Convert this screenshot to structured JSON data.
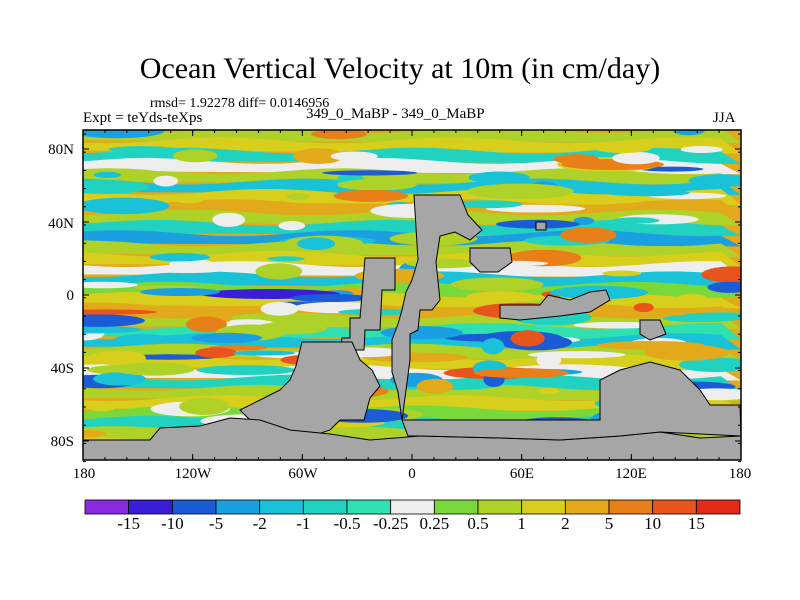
{
  "header": {
    "title": "Ocean Vertical Velocity at 10m (in cm/day)",
    "stats": "rmsd= 1.92278 diff= 0.0146956",
    "expt": "Expt = teYds-teXps",
    "cases": "349_0_MaBP - 349_0_MaBP",
    "season": "JJA"
  },
  "axes": {
    "lat_labels": [
      "80N",
      "40N",
      "0",
      "40S",
      "80S"
    ],
    "lon_labels": [
      "180",
      "120W",
      "60W",
      "0",
      "60E",
      "120E",
      "180"
    ]
  },
  "colorbar": {
    "labels": [
      "-15",
      "-10",
      "-5",
      "-2",
      "-1",
      "-0.5",
      "-0.25",
      "0.25",
      "0.5",
      "1",
      "2",
      "5",
      "10",
      "15"
    ],
    "colors": [
      "#8a2be2",
      "#3a1ed6",
      "#1c5bd6",
      "#1aa0e0",
      "#19c2d6",
      "#21d2c1",
      "#2fe0b0",
      "#eeeeee",
      "#7ad93a",
      "#aed228",
      "#d7cf1c",
      "#e2a91a",
      "#e87f19",
      "#e8541c",
      "#e32b18"
    ],
    "land": "#a6a6a6"
  }
}
